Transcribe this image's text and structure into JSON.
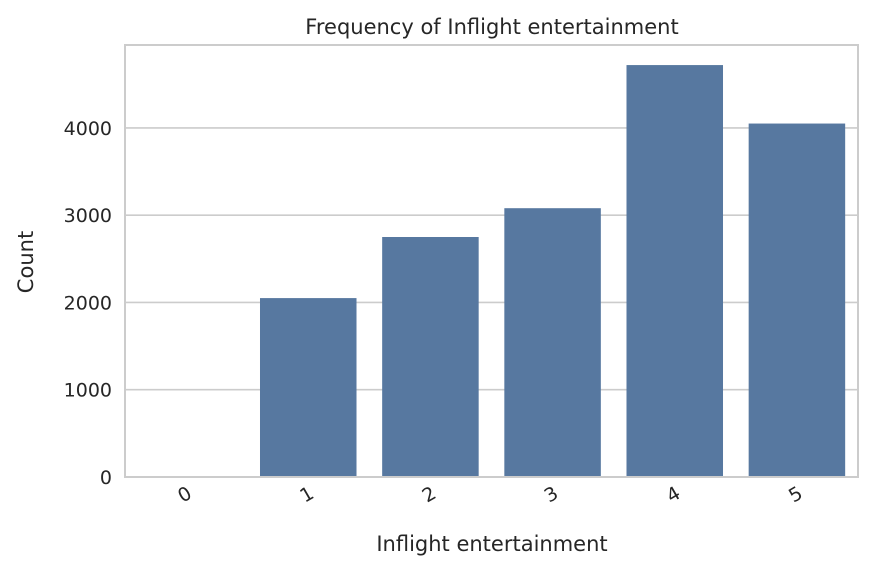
{
  "chart_data": {
    "type": "bar",
    "title": "Frequency of Inflight entertainment",
    "xlabel": "Inflight entertainment",
    "ylabel": "Count",
    "categories": [
      "0",
      "1",
      "2",
      "3",
      "4",
      "5"
    ],
    "values": [
      4,
      2050,
      2750,
      3080,
      4720,
      4050
    ],
    "ylim": [
      0,
      4950
    ],
    "yticks": [
      0,
      1000,
      2000,
      3000,
      4000
    ],
    "ytick_labels": [
      "0",
      "1000",
      "2000",
      "3000",
      "4000"
    ],
    "grid": "y",
    "legend": "none",
    "colors": {
      "bar": "#5778a0",
      "grid": "#cccccc",
      "text": "#262626",
      "background": "#ffffff"
    }
  }
}
